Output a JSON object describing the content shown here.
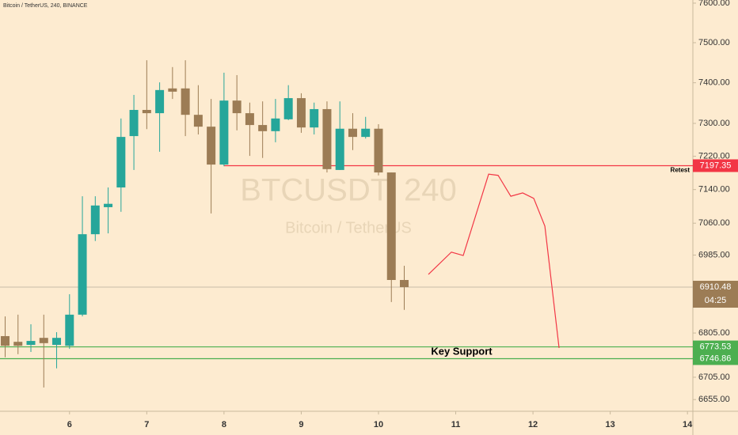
{
  "chart_data": {
    "type": "candlestick",
    "title": "Bitcoin / TetherUS, 240, BINANCE",
    "watermark": "BTCUSDT, 240",
    "watermark_subtitle": "Bitcoin / TetherUS",
    "log_scale": true,
    "grid": false,
    "up_color": "#26a69a",
    "down_color": "#9c7c55",
    "x": [
      5.1667,
      5.3333,
      5.5,
      5.6667,
      5.8333,
      6,
      6.1667,
      6.3333,
      6.5,
      6.6667,
      6.8333,
      7,
      7.1667,
      7.3333,
      7.5,
      7.6667,
      7.8333,
      8,
      8.1667,
      8.3333,
      8.5,
      8.6667,
      8.8333,
      9,
      9.1667,
      9.3333,
      9.5,
      9.6667,
      9.8333,
      10,
      10.1667,
      10.3333
    ],
    "open": [
      6798,
      6785,
      6778,
      6794,
      6778,
      6776,
      6847,
      7034,
      7098,
      7145,
      7269,
      7333,
      7325,
      7386,
      7386,
      7321,
      7292,
      7200,
      7356,
      7325,
      7296,
      7281,
      7310,
      7362,
      7290,
      7335,
      7187,
      7287,
      7267,
      7287,
      7181,
      6927
    ],
    "high": [
      6843,
      6847,
      6825,
      6847,
      6807,
      6894,
      7124,
      7124,
      7145,
      7312,
      7370,
      7456,
      7401,
      7439,
      7456,
      7394,
      7360,
      7425,
      7419,
      7351,
      7354,
      7360,
      7394,
      7374,
      7351,
      7354,
      7354,
      7325,
      7316,
      7298,
      7181,
      6960
    ],
    "low": [
      6750,
      6757,
      6762,
      6682,
      6725,
      6769,
      6843,
      7018,
      7036,
      7087,
      7187,
      7286,
      7231,
      7360,
      7269,
      7273,
      7083,
      7196,
      7283,
      7221,
      7216,
      7254,
      7308,
      7277,
      7273,
      7181,
      7187,
      7235,
      7263,
      7174,
      6876,
      6858
    ],
    "close": [
      6776,
      6776,
      6787,
      6782,
      6794,
      6847,
      7034,
      7102,
      7106,
      7267,
      7333,
      7325,
      7382,
      7378,
      7321,
      7292,
      7200,
      7356,
      7325,
      7296,
      7281,
      7312,
      7362,
      7290,
      7335,
      7189,
      7287,
      7267,
      7287,
      7181,
      6927,
      6910.48
    ],
    "countdown": "04:25",
    "xlim": [
      5.1,
      14.07
    ],
    "xticks": [
      6,
      7,
      8,
      9,
      10,
      11,
      12,
      13,
      14
    ],
    "ylim": [
      6629,
      7608
    ],
    "yticks": [
      {
        "value": 6655,
        "label": "6655.00"
      },
      {
        "value": 6705,
        "label": "6705.00"
      },
      {
        "value": 6805,
        "label": "6805.00"
      },
      {
        "value": 6985,
        "label": "6985.00"
      },
      {
        "value": 7060,
        "label": "7060.00"
      },
      {
        "value": 7140,
        "label": "7140.00"
      },
      {
        "value": 7220,
        "label": "7220.00"
      },
      {
        "value": 7300,
        "label": "7300.00"
      },
      {
        "value": 7400,
        "label": "7400.00"
      },
      {
        "value": 7500,
        "label": "7500.00"
      },
      {
        "value": 7600,
        "label": "7600.00"
      }
    ],
    "levels": [
      {
        "value": 7197.35,
        "color": "#f23645",
        "x_start": 8,
        "label": "Retest"
      },
      {
        "value": 6773.53,
        "color": "#4caf50"
      },
      {
        "value": 6746.86,
        "color": "#4caf50"
      }
    ],
    "support_label": "Key Support",
    "projection": {
      "color": "#f23645",
      "x": [
        10.646,
        10.944,
        11.097,
        11.426,
        11.549,
        11.713,
        11.867,
        12.01,
        12.154,
        12.338
      ],
      "values": [
        6940,
        6992,
        6984,
        7177,
        7174,
        7124,
        7132,
        7119,
        7053,
        6771
      ]
    }
  }
}
